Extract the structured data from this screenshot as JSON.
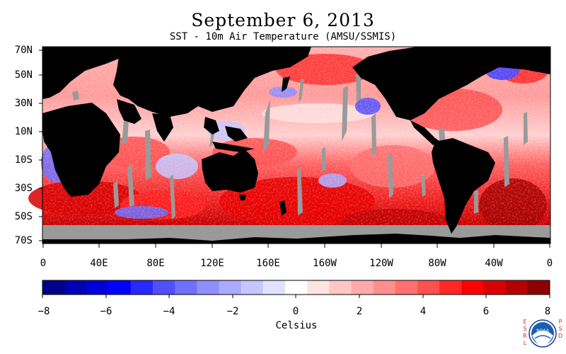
{
  "title": "September 6, 2013",
  "subtitle": "SST - 10m Air Temperature (AMSU/SSMIS)",
  "lat_labels": [
    "70N",
    "50N",
    "30N",
    "10N",
    "10S",
    "30S",
    "50S",
    "70S"
  ],
  "lon_labels": [
    "0",
    "40E",
    "80E",
    "120E",
    "160E",
    "160W",
    "120W",
    "80W",
    "40W",
    "0"
  ],
  "colorbar": {
    "ticks": [
      "−8",
      "−6",
      "−4",
      "−2",
      "0",
      "2",
      "4",
      "6",
      "8"
    ],
    "units": "Celsius",
    "colors": [
      "#00008b",
      "#0000b4",
      "#0000d8",
      "#0000ff",
      "#2828ff",
      "#5050ff",
      "#7070ff",
      "#8e8eff",
      "#aaaaff",
      "#c6c6ff",
      "#e2e2ff",
      "#ffffff",
      "#ffe2e2",
      "#ffc6c6",
      "#ffaaaa",
      "#ff8e8e",
      "#ff7070",
      "#ff5050",
      "#ff2828",
      "#ff0000",
      "#d80000",
      "#b40000",
      "#8b0000"
    ]
  },
  "colors": {
    "land": "#000000",
    "missing": "#9a9a9a",
    "background": "#ffffff"
  },
  "logo": {
    "left_letters": "ESRL",
    "right_letters": "PSD",
    "emblem": "noaa-logo"
  }
}
